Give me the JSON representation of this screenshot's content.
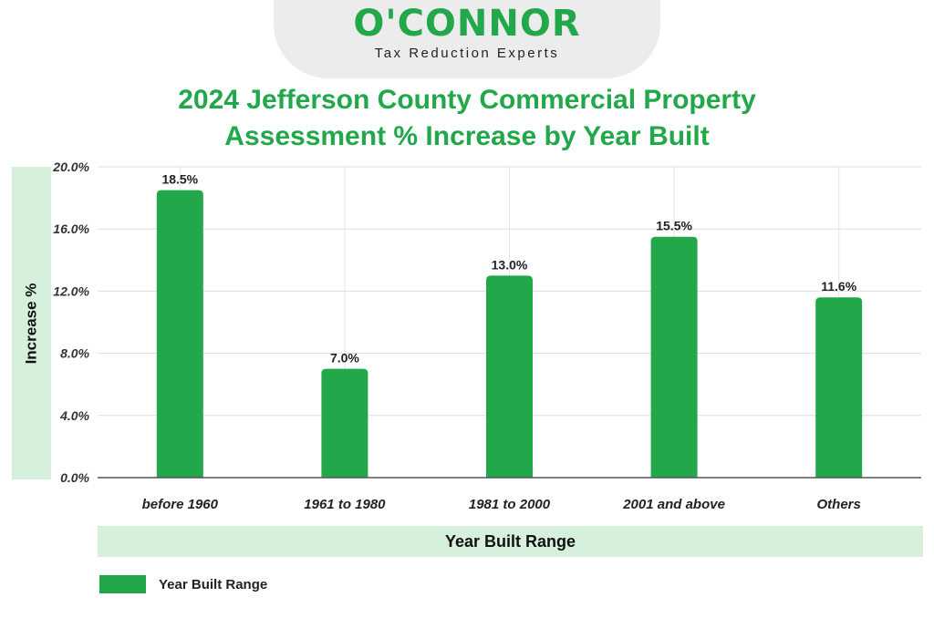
{
  "brand": {
    "name": "O'CONNOR",
    "tagline": "Tax Reduction Experts",
    "color": "#22a84a"
  },
  "chart_data": {
    "type": "bar",
    "title_line1": "2024 Jefferson County Commercial Property",
    "title_line2": "Assessment % Increase by Year Built",
    "xlabel": "Year Built Range",
    "ylabel": "Increase %",
    "categories": [
      "before 1960",
      "1961 to 1980",
      "1981 to 2000",
      "2001 and above",
      "Others"
    ],
    "series": [
      {
        "name": "Year Built Range",
        "values": [
          18.5,
          7.0,
          13.0,
          15.5,
          11.6
        ],
        "labels": [
          "18.5%",
          "7.0%",
          "13.0%",
          "15.5%",
          "11.6%"
        ],
        "color": "#22a84a"
      }
    ],
    "yticks": [
      0,
      4,
      8,
      12,
      16,
      20
    ],
    "ytick_labels": [
      "0.0%",
      "4.0%",
      "8.0%",
      "12.0%",
      "16.0%",
      "20.0%"
    ],
    "ylim": [
      0,
      20
    ],
    "grid": true,
    "legend_position": "bottom-left"
  }
}
